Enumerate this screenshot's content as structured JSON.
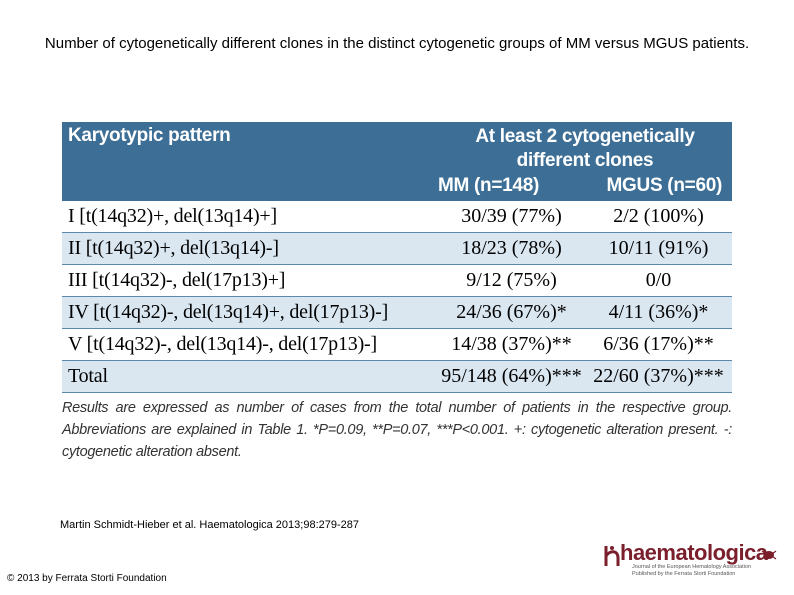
{
  "title": "Number of cytogenetically different clones in the distinct cytogenetic groups of MM versus MGUS patients.",
  "table": {
    "header": {
      "pattern_label": "Karyotypic pattern",
      "group_label_line1": "At least 2 cytogenetically",
      "group_label_line2": "different clones",
      "mm_label": "MM (n=148)",
      "mgus_label": "MGUS (n=60)"
    },
    "rows": [
      {
        "pattern": "I [t(14q32)+, del(13q14)+]",
        "mm": "30/39 (77%)",
        "mgus": "2/2 (100%)"
      },
      {
        "pattern": "II [t(14q32)+, del(13q14)-]",
        "mm": "18/23 (78%)",
        "mgus": "10/11 (91%)"
      },
      {
        "pattern": "III [t(14q32)-, del(17p13)+]",
        "mm": "9/12 (75%)",
        "mgus": "0/0"
      },
      {
        "pattern": "IV [t(14q32)-, del(13q14)+, del(17p13)-]",
        "mm": "24/36 (67%)*",
        "mgus": "4/11 (36%)*"
      },
      {
        "pattern": "V [t(14q32)-, del(13q14)-, del(17p13)-]",
        "mm": "14/38 (37%)**",
        "mgus": "6/36 (17%)**"
      },
      {
        "pattern": "Total",
        "mm": "95/148 (64%)***",
        "mgus": "22/60 (37%)***"
      }
    ],
    "footnote": "Results are expressed as number of cases from the total number of patients in the respective group. Abbreviations are explained in Table 1. *P=0.09, **P=0.07, ***P<0.001. +: cytogenetic alteration present. -: cytogenetic alteration absent."
  },
  "citation": "Martin Schmidt-Hieber et al. Haematologica 2013;98:279-287",
  "copyright": "© 2013 by Ferrata Storti Foundation",
  "logo": {
    "wordmark": "haematologica",
    "tagline": "Journal of the European Hematology Association Published by the Ferrata Storti Foundation"
  },
  "colors": {
    "header_bg": "#3c6e96",
    "alt_row_bg": "#dae7f1",
    "logo_red": "#7a1f2b"
  }
}
